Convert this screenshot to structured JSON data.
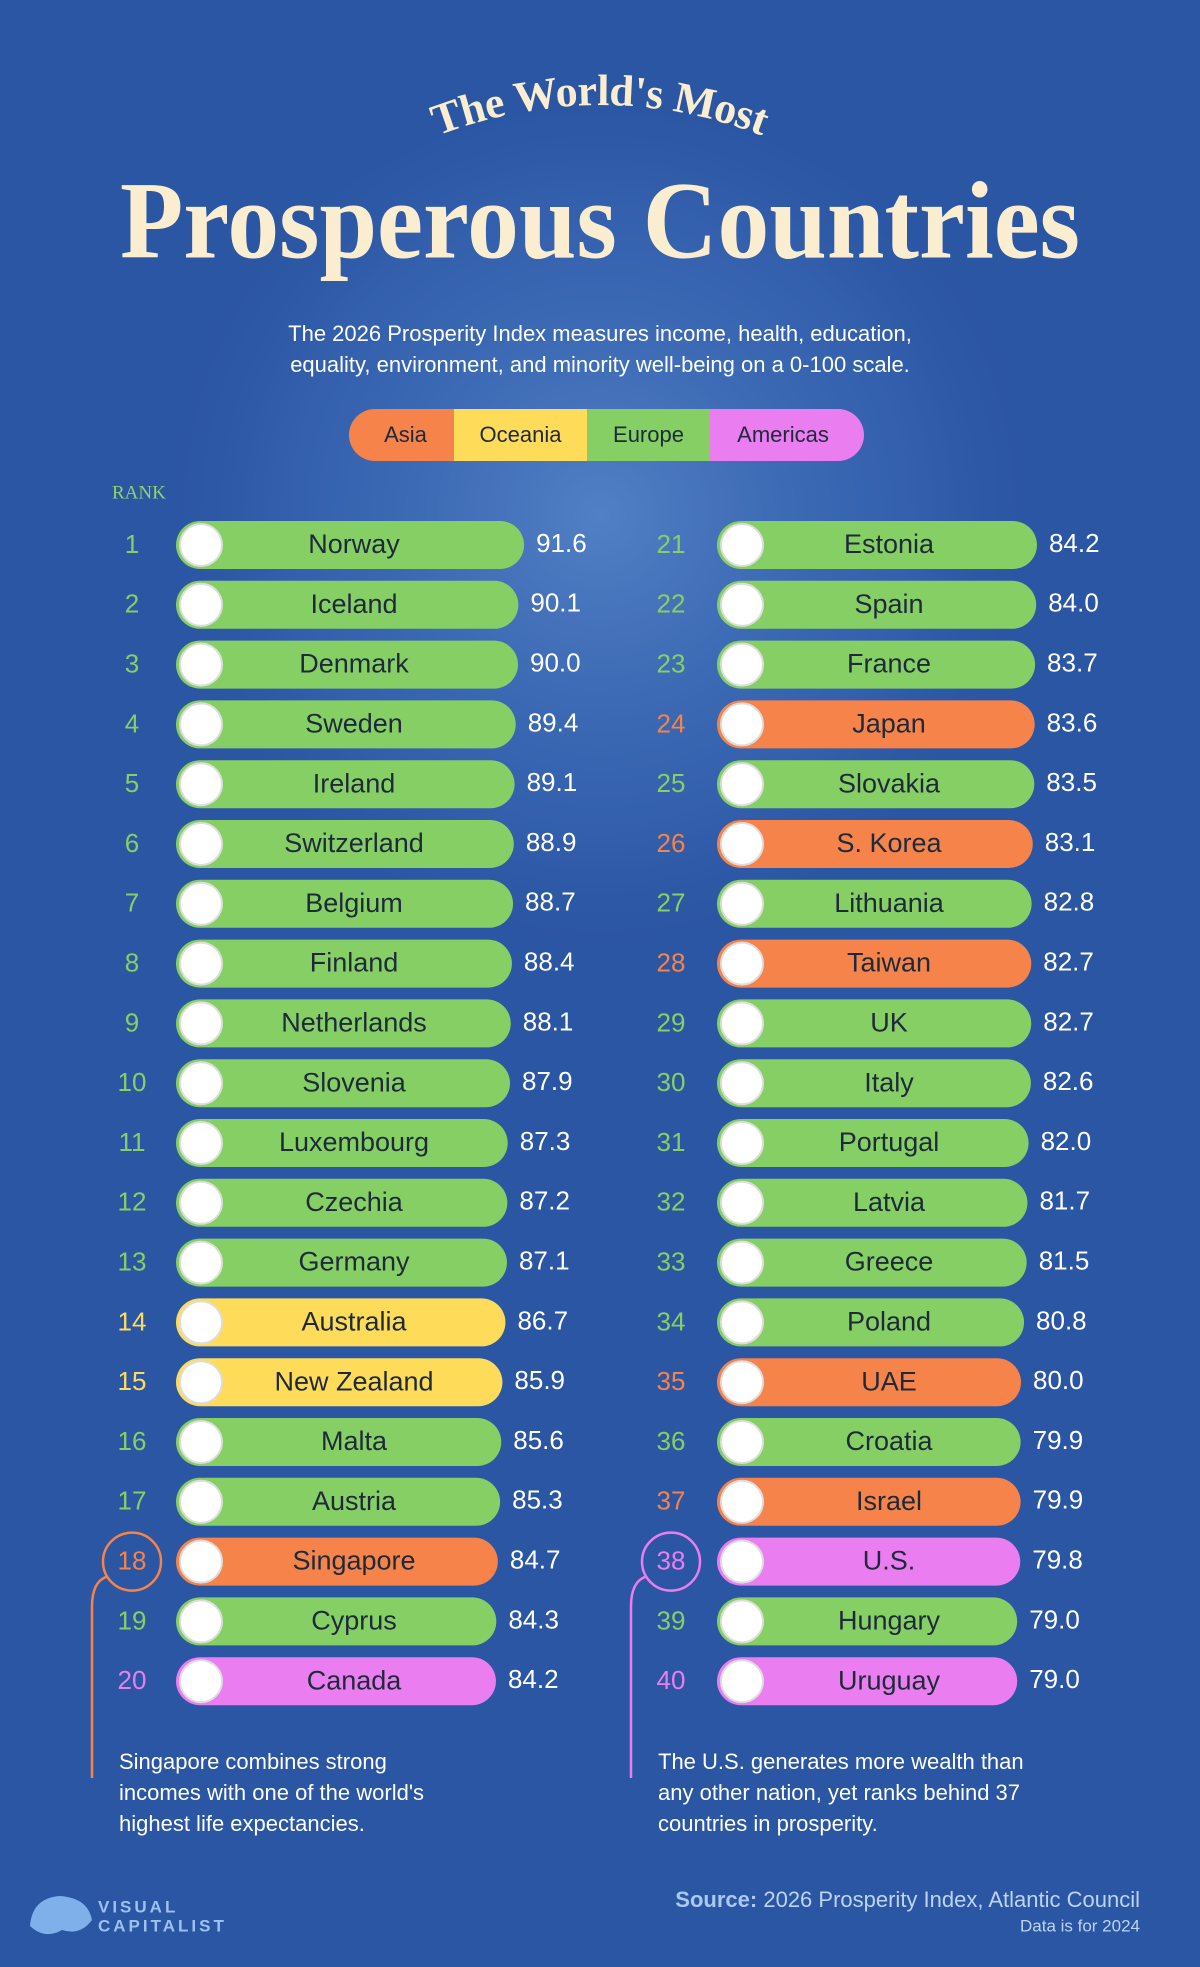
{
  "chart_data": {
    "type": "ranked-bar",
    "title_line1": "The World's Most",
    "title": "Prosperous Countries",
    "subtitle": [
      "The 2026 Prosperity Index measures income, health, education,",
      "equality, environment, and minority well-being on a 0-100 scale."
    ],
    "legend": [
      {
        "name": "Asia",
        "color": "#f5834a"
      },
      {
        "name": "Oceania",
        "color": "#fedc5a"
      },
      {
        "name": "Europe",
        "color": "#86cf65"
      },
      {
        "name": "Americas",
        "color": "#ea7ef0"
      }
    ],
    "rank_label": "RANK",
    "ranks": [
      1,
      2,
      3,
      4,
      5,
      6,
      7,
      8,
      9,
      10,
      11,
      12,
      13,
      14,
      15,
      16,
      17,
      18,
      19,
      20,
      21,
      22,
      23,
      24,
      25,
      26,
      27,
      28,
      29,
      30,
      31,
      32,
      33,
      34,
      35,
      36,
      37,
      38,
      39,
      40
    ],
    "categories": [
      "Norway",
      "Iceland",
      "Denmark",
      "Sweden",
      "Ireland",
      "Switzerland",
      "Belgium",
      "Finland",
      "Netherlands",
      "Slovenia",
      "Luxembourg",
      "Czechia",
      "Germany",
      "Australia",
      "New Zealand",
      "Malta",
      "Austria",
      "Singapore",
      "Cyprus",
      "Canada",
      "Estonia",
      "Spain",
      "France",
      "Japan",
      "Slovakia",
      "S. Korea",
      "Lithuania",
      "Taiwan",
      "UK",
      "Italy",
      "Portugal",
      "Latvia",
      "Greece",
      "Poland",
      "UAE",
      "Croatia",
      "Israel",
      "U.S.",
      "Hungary",
      "Uruguay"
    ],
    "regions": [
      "Europe",
      "Europe",
      "Europe",
      "Europe",
      "Europe",
      "Europe",
      "Europe",
      "Europe",
      "Europe",
      "Europe",
      "Europe",
      "Europe",
      "Europe",
      "Oceania",
      "Oceania",
      "Europe",
      "Europe",
      "Asia",
      "Europe",
      "Americas",
      "Europe",
      "Europe",
      "Europe",
      "Asia",
      "Europe",
      "Asia",
      "Europe",
      "Asia",
      "Europe",
      "Europe",
      "Europe",
      "Europe",
      "Europe",
      "Europe",
      "Asia",
      "Europe",
      "Asia",
      "Americas",
      "Europe",
      "Americas"
    ],
    "values": [
      91.6,
      90.1,
      90.0,
      89.4,
      89.1,
      88.9,
      88.7,
      88.4,
      88.1,
      87.9,
      87.3,
      87.2,
      87.1,
      86.7,
      85.9,
      85.6,
      85.3,
      84.7,
      84.3,
      84.2,
      84.2,
      84.0,
      83.7,
      83.6,
      83.5,
      83.1,
      82.8,
      82.7,
      82.7,
      82.6,
      82.0,
      81.7,
      81.5,
      80.8,
      80.0,
      79.9,
      79.9,
      79.8,
      79.0,
      79.0
    ],
    "value_labels": [
      "91.6",
      "90.1",
      "90.0",
      "89.4",
      "89.1",
      "88.9",
      "88.7",
      "88.4",
      "88.1",
      "87.9",
      "87.3",
      "87.2",
      "87.1",
      "86.7",
      "85.9",
      "85.6",
      "85.3",
      "84.7",
      "84.3",
      "84.2",
      "84.2",
      "84.0",
      "83.7",
      "83.6",
      "83.5",
      "83.1",
      "82.8",
      "82.7",
      "82.7",
      "82.6",
      "82.0",
      "81.7",
      "81.5",
      "80.8",
      "80.0",
      "79.9",
      "79.9",
      "79.8",
      "79.0",
      "79.0"
    ],
    "annotations": [
      {
        "rank": 18,
        "lines": [
          "Singapore combines strong",
          "incomes with one of the world's",
          "highest life expectancies."
        ]
      },
      {
        "rank": 38,
        "lines": [
          "The U.S. generates more wealth than",
          "any other nation, yet ranks behind 37",
          "countries in prosperity."
        ]
      }
    ],
    "source_label": "Source:",
    "source": "2026 Prosperity Index, Atlantic Council",
    "note": "Data is for 2024",
    "brand": [
      "VISUAL",
      "CAPITALIST"
    ]
  }
}
